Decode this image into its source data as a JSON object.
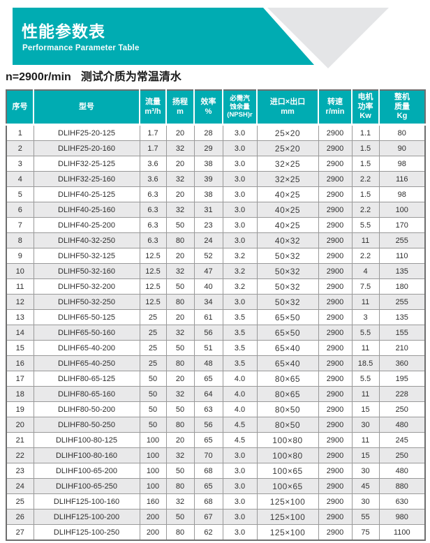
{
  "header": {
    "title": "性能参数表",
    "subtitle": "Performance Parameter Table"
  },
  "condition": {
    "speed": "n=2900r/min",
    "medium": "测试介质为常温清水"
  },
  "colors": {
    "teal": "#00ACB2",
    "triangle_gray": "#E4E5E7",
    "row_alt": "#E9E9EA",
    "border_outer": "#6E6E6E",
    "border_inner": "#999999",
    "header_text": "#FFFFFF"
  },
  "table": {
    "columns": [
      {
        "key": "no",
        "label": "序号",
        "unit": ""
      },
      {
        "key": "model",
        "label": "型号",
        "unit": ""
      },
      {
        "key": "flow",
        "label": "流量",
        "unit": "m³/h"
      },
      {
        "key": "head",
        "label": "扬程",
        "unit": "m"
      },
      {
        "key": "efficiency",
        "label": "效率",
        "unit": "%"
      },
      {
        "key": "npsh",
        "label": "必需汽\n蚀余量",
        "unit": "(NPSH)r"
      },
      {
        "key": "inlet_outlet",
        "label": "进口×出口",
        "unit": "mm"
      },
      {
        "key": "speed",
        "label": "转速",
        "unit": "r/min"
      },
      {
        "key": "power",
        "label": "电机\n功率",
        "unit": "Kw"
      },
      {
        "key": "weight",
        "label": "整机\n质量",
        "unit": "Kg"
      }
    ],
    "rows": [
      [
        "1",
        "DLIHF25-20-125",
        "1.7",
        "20",
        "28",
        "3.0",
        "25×20",
        "2900",
        "1.1",
        "80"
      ],
      [
        "2",
        "DLIHF25-20-160",
        "1.7",
        "32",
        "29",
        "3.0",
        "25×20",
        "2900",
        "1.5",
        "90"
      ],
      [
        "3",
        "DLIHF32-25-125",
        "3.6",
        "20",
        "38",
        "3.0",
        "32×25",
        "2900",
        "1.5",
        "98"
      ],
      [
        "4",
        "DLIHF32-25-160",
        "3.6",
        "32",
        "39",
        "3.0",
        "32×25",
        "2900",
        "2.2",
        "116"
      ],
      [
        "5",
        "DLIHF40-25-125",
        "6.3",
        "20",
        "38",
        "3.0",
        "40×25",
        "2900",
        "1.5",
        "98"
      ],
      [
        "6",
        "DLIHF40-25-160",
        "6.3",
        "32",
        "31",
        "3.0",
        "40×25",
        "2900",
        "2.2",
        "100"
      ],
      [
        "7",
        "DLIHF40-25-200",
        "6.3",
        "50",
        "23",
        "3.0",
        "40×25",
        "2900",
        "5.5",
        "170"
      ],
      [
        "8",
        "DLIHF40-32-250",
        "6.3",
        "80",
        "24",
        "3.0",
        "40×32",
        "2900",
        "11",
        "255"
      ],
      [
        "9",
        "DLIHF50-32-125",
        "12.5",
        "20",
        "52",
        "3.2",
        "50×32",
        "2900",
        "2.2",
        "110"
      ],
      [
        "10",
        "DLIHF50-32-160",
        "12.5",
        "32",
        "47",
        "3.2",
        "50×32",
        "2900",
        "4",
        "135"
      ],
      [
        "11",
        "DLIHF50-32-200",
        "12.5",
        "50",
        "40",
        "3.2",
        "50×32",
        "2900",
        "7.5",
        "180"
      ],
      [
        "12",
        "DLIHF50-32-250",
        "12.5",
        "80",
        "34",
        "3.0",
        "50×32",
        "2900",
        "11",
        "255"
      ],
      [
        "13",
        "DLIHF65-50-125",
        "25",
        "20",
        "61",
        "3.5",
        "65×50",
        "2900",
        "3",
        "135"
      ],
      [
        "14",
        "DLIHF65-50-160",
        "25",
        "32",
        "56",
        "3.5",
        "65×50",
        "2900",
        "5.5",
        "155"
      ],
      [
        "15",
        "DLIHF65-40-200",
        "25",
        "50",
        "51",
        "3.5",
        "65×40",
        "2900",
        "11",
        "210"
      ],
      [
        "16",
        "DLIHF65-40-250",
        "25",
        "80",
        "48",
        "3.5",
        "65×40",
        "2900",
        "18.5",
        "360"
      ],
      [
        "17",
        "DLIHF80-65-125",
        "50",
        "20",
        "65",
        "4.0",
        "80×65",
        "2900",
        "5.5",
        "195"
      ],
      [
        "18",
        "DLIHF80-65-160",
        "50",
        "32",
        "64",
        "4.0",
        "80×65",
        "2900",
        "11",
        "228"
      ],
      [
        "19",
        "DLIHF80-50-200",
        "50",
        "50",
        "63",
        "4.0",
        "80×50",
        "2900",
        "15",
        "250"
      ],
      [
        "20",
        "DLIHF80-50-250",
        "50",
        "80",
        "56",
        "4.5",
        "80×50",
        "2900",
        "30",
        "480"
      ],
      [
        "21",
        "DLIHF100-80-125",
        "100",
        "20",
        "65",
        "4.5",
        "100×80",
        "2900",
        "11",
        "245"
      ],
      [
        "22",
        "DLIHF100-80-160",
        "100",
        "32",
        "70",
        "3.0",
        "100×80",
        "2900",
        "15",
        "250"
      ],
      [
        "23",
        "DLIHF100-65-200",
        "100",
        "50",
        "68",
        "3.0",
        "100×65",
        "2900",
        "30",
        "480"
      ],
      [
        "24",
        "DLIHF100-65-250",
        "100",
        "80",
        "65",
        "3.0",
        "100×65",
        "2900",
        "45",
        "880"
      ],
      [
        "25",
        "DLIHF125-100-160",
        "160",
        "32",
        "68",
        "3.0",
        "125×100",
        "2900",
        "30",
        "630"
      ],
      [
        "26",
        "DLIHF125-100-200",
        "200",
        "50",
        "67",
        "3.0",
        "125×100",
        "2900",
        "55",
        "980"
      ],
      [
        "27",
        "DLIHF125-100-250",
        "200",
        "80",
        "62",
        "3.0",
        "125×100",
        "2900",
        "75",
        "1100"
      ]
    ]
  }
}
